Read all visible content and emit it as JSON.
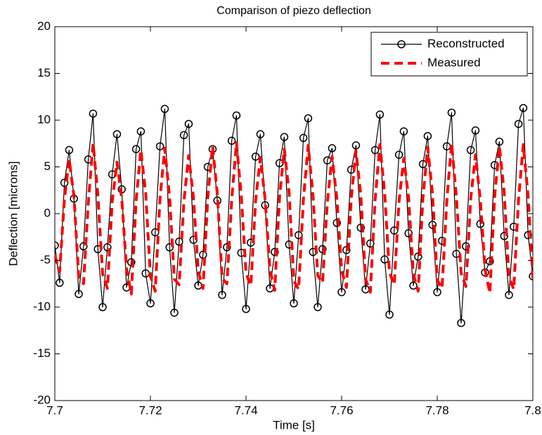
{
  "chart_data": {
    "type": "line",
    "title": "Comparison of piezo deflection",
    "x_label": "Time [s]",
    "y_label": "Deflection [microns]",
    "xlim": [
      7.7,
      7.8
    ],
    "xticks": [
      7.7,
      7.72,
      7.74,
      7.76,
      7.78,
      7.8
    ],
    "ylim": [
      -20,
      20
    ],
    "yticks": [
      -20,
      -15,
      -10,
      -5,
      0,
      5,
      10,
      15,
      20
    ],
    "grid": false,
    "legend": "northeast",
    "x": [
      7.7,
      7.701,
      7.702,
      7.703,
      7.704,
      7.705,
      7.706,
      7.707,
      7.708,
      7.709,
      7.71,
      7.711,
      7.712,
      7.713,
      7.714,
      7.715,
      7.716,
      7.717,
      7.718,
      7.719,
      7.72,
      7.721,
      7.722,
      7.723,
      7.724,
      7.725,
      7.726,
      7.727,
      7.728,
      7.729,
      7.73,
      7.731,
      7.732,
      7.733,
      7.734,
      7.735,
      7.736,
      7.737,
      7.738,
      7.739,
      7.74,
      7.741,
      7.742,
      7.743,
      7.744,
      7.745,
      7.746,
      7.747,
      7.748,
      7.749,
      7.75,
      7.751,
      7.752,
      7.753,
      7.754,
      7.755,
      7.756,
      7.757,
      7.758,
      7.759,
      7.76,
      7.761,
      7.762,
      7.763,
      7.764,
      7.765,
      7.766,
      7.767,
      7.768,
      7.769,
      7.77,
      7.771,
      7.772,
      7.773,
      7.774,
      7.775,
      7.776,
      7.777,
      7.778,
      7.779,
      7.78,
      7.781,
      7.782,
      7.783,
      7.784,
      7.785,
      7.786,
      7.787,
      7.788,
      7.789,
      7.79,
      7.791,
      7.792,
      7.793,
      7.794,
      7.795,
      7.796,
      7.797,
      7.798,
      7.799,
      7.8
    ],
    "series": [
      {
        "name": "Reconstructed",
        "color": "#000000",
        "marker": "o",
        "dashed": false,
        "values": [
          -3.4,
          -7.4,
          3.3,
          6.8,
          1.6,
          -8.6,
          -3.5,
          5.8,
          10.7,
          -3.8,
          -10.0,
          -3.6,
          4.2,
          8.5,
          2.6,
          -7.9,
          -5.2,
          6.9,
          8.8,
          -6.4,
          -9.6,
          -2.0,
          7.2,
          11.2,
          -3.6,
          -10.6,
          -3.0,
          8.4,
          9.6,
          -2.8,
          -7.7,
          -4.4,
          5.0,
          6.9,
          1.4,
          -8.7,
          -3.6,
          7.8,
          10.5,
          -4.2,
          -10.2,
          -3.1,
          6.1,
          8.5,
          0.9,
          -8.0,
          -4.1,
          5.4,
          8.2,
          -3.3,
          -9.6,
          -2.3,
          8.1,
          10.2,
          -4.1,
          -10.0,
          -3.8,
          5.7,
          7.0,
          -1.0,
          -8.4,
          -3.9,
          4.7,
          7.3,
          -1.5,
          -8.1,
          -3.2,
          6.8,
          10.6,
          -4.9,
          -10.8,
          -1.8,
          6.3,
          8.8,
          -2.1,
          -7.7,
          -4.6,
          5.3,
          8.3,
          -1.2,
          -8.4,
          -2.9,
          7.2,
          10.8,
          -4.3,
          -11.7,
          -3.5,
          6.8,
          8.9,
          -1.1,
          -6.3,
          -5.1,
          5.2,
          7.7,
          -2.4,
          -8.7,
          -1.4,
          9.6,
          11.3,
          -2.3,
          -6.7
        ]
      },
      {
        "name": "Measured",
        "color": "#ff0000",
        "marker": "none",
        "dashed": true,
        "values": [
          -4.5,
          -6.2,
          1.5,
          5.8,
          1.9,
          -6.8,
          -7.5,
          1.2,
          7.5,
          2.0,
          -6.5,
          -8.0,
          1.3,
          5.5,
          1.6,
          -5.9,
          -8.6,
          1.4,
          6.8,
          2.2,
          -6.7,
          -8.3,
          1.6,
          7.0,
          1.8,
          -7.0,
          -7.6,
          1.3,
          6.2,
          1.7,
          -6.2,
          -8.0,
          1.8,
          7.2,
          2.1,
          -6.9,
          -7.5,
          1.5,
          7.6,
          1.9,
          -6.4,
          -7.7,
          1.4,
          6.0,
          1.5,
          -6.0,
          -8.2,
          1.7,
          6.9,
          2.3,
          -7.2,
          -8.1,
          1.5,
          7.3,
          2.0,
          -6.6,
          -7.4,
          1.2,
          6.1,
          1.6,
          -6.1,
          -7.9,
          1.6,
          6.7,
          2.0,
          -7.0,
          -8.4,
          1.5,
          7.4,
          2.2,
          -6.3,
          -7.6,
          1.3,
          5.9,
          1.7,
          -6.5,
          -8.3,
          1.7,
          7.1,
          2.1,
          -7.1,
          -8.0,
          1.4,
          7.5,
          1.8,
          -6.4,
          -7.8,
          1.6,
          6.3,
          1.5,
          -6.0,
          -8.5,
          1.8,
          7.2,
          2.3,
          -6.8,
          -8.1,
          1.5,
          7.4,
          1.9,
          -6.9
        ]
      }
    ]
  }
}
